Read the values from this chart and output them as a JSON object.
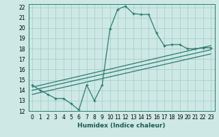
{
  "xlabel": "Humidex (Indice chaleur)",
  "ylabel": "",
  "xlim": [
    -0.5,
    23.5
  ],
  "ylim": [
    12,
    22.3
  ],
  "yticks": [
    12,
    13,
    14,
    15,
    16,
    17,
    18,
    19,
    20,
    21,
    22
  ],
  "xticks": [
    0,
    1,
    2,
    3,
    4,
    5,
    6,
    7,
    8,
    9,
    10,
    11,
    12,
    13,
    14,
    15,
    16,
    17,
    18,
    19,
    20,
    21,
    22,
    23
  ],
  "bg_color": "#cde8e5",
  "grid_color": "#aacfcc",
  "line_color": "#2a7a70",
  "curve1_x": [
    0,
    1,
    2,
    3,
    4,
    5,
    6,
    7,
    8,
    9,
    10,
    11,
    12,
    13,
    14,
    15,
    16,
    17,
    18,
    19,
    20,
    21,
    22,
    23
  ],
  "curve1_y": [
    14.5,
    14.0,
    13.6,
    13.2,
    13.2,
    12.7,
    12.1,
    14.5,
    13.0,
    14.5,
    19.9,
    21.8,
    22.1,
    21.4,
    21.3,
    21.3,
    19.5,
    18.3,
    18.4,
    18.4,
    18.0,
    18.0,
    18.1,
    18.1
  ],
  "curve2_x": [
    0,
    23
  ],
  "curve2_y": [
    14.3,
    18.3
  ],
  "curve3_x": [
    0,
    23
  ],
  "curve3_y": [
    14.0,
    17.9
  ],
  "curve4_x": [
    0,
    23
  ],
  "curve4_y": [
    13.6,
    17.5
  ],
  "tick_fontsize": 5.5,
  "xlabel_fontsize": 6.5
}
